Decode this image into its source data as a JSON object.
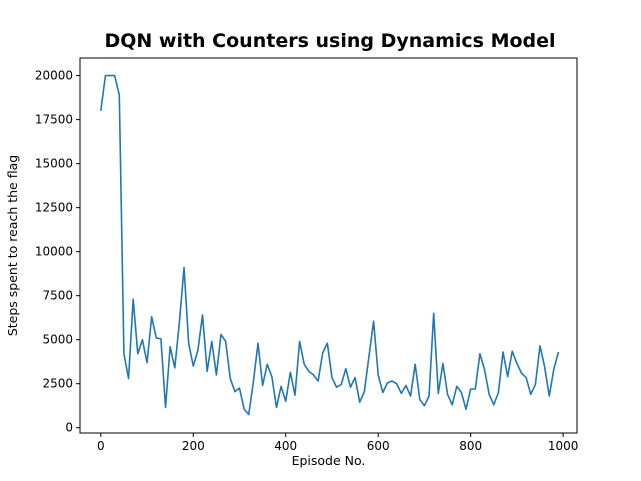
{
  "chart_data": {
    "type": "line",
    "title": "DQN with Counters using Dynamics Model",
    "xlabel": "Episode No.",
    "ylabel": "Steps spent to reach the flag",
    "xlim": [
      -45,
      1030
    ],
    "ylim": [
      -300,
      21000
    ],
    "xticks": [
      0,
      200,
      400,
      600,
      800,
      1000
    ],
    "yticks": [
      0,
      2500,
      5000,
      7500,
      10000,
      12500,
      15000,
      17500,
      20000
    ],
    "grid": false,
    "line_color": "#1f77b4",
    "series": [
      {
        "x": [
          0,
          10,
          20,
          30,
          40,
          50,
          60,
          70,
          80,
          90,
          100,
          110,
          120,
          130,
          140,
          150,
          160,
          170,
          180,
          190,
          200,
          210,
          220,
          230,
          240,
          250,
          260,
          270,
          280,
          290,
          300,
          310,
          320,
          330,
          340,
          350,
          360,
          370,
          380,
          390,
          400,
          410,
          420,
          430,
          440,
          450,
          460,
          470,
          480,
          490,
          500,
          510,
          520,
          530,
          540,
          550,
          560,
          570,
          580,
          590,
          600,
          610,
          620,
          630,
          640,
          650,
          660,
          670,
          680,
          690,
          700,
          710,
          720,
          730,
          740,
          750,
          760,
          770,
          780,
          790,
          800,
          810,
          820,
          830,
          840,
          850,
          860,
          870,
          880,
          890,
          900,
          910,
          920,
          930,
          940,
          950,
          960,
          970,
          980,
          990
        ],
        "y": [
          18000,
          20000,
          20000,
          20000,
          18900,
          4200,
          2800,
          7300,
          4200,
          5000,
          3700,
          6300,
          5100,
          5050,
          1150,
          4600,
          3400,
          6000,
          9100,
          4800,
          3500,
          4400,
          6400,
          3200,
          4900,
          3000,
          5300,
          4900,
          2800,
          2050,
          2250,
          1050,
          750,
          2600,
          4800,
          2400,
          3600,
          2900,
          1150,
          2350,
          1500,
          3150,
          1850,
          4900,
          3600,
          3200,
          3000,
          2650,
          4250,
          4800,
          2850,
          2300,
          2450,
          3350,
          2300,
          2850,
          1450,
          2050,
          4050,
          6050,
          3000,
          2000,
          2550,
          2650,
          2500,
          1950,
          2400,
          1800,
          3600,
          1600,
          1250,
          1800,
          6500,
          1950,
          3650,
          1900,
          1300,
          2350,
          2000,
          1050,
          2200,
          2200,
          4200,
          3300,
          1900,
          1300,
          2000,
          4300,
          2900,
          4350,
          3650,
          3100,
          2850,
          1900,
          2450,
          4650,
          3450,
          1800,
          3350,
          4300
        ]
      }
    ]
  }
}
